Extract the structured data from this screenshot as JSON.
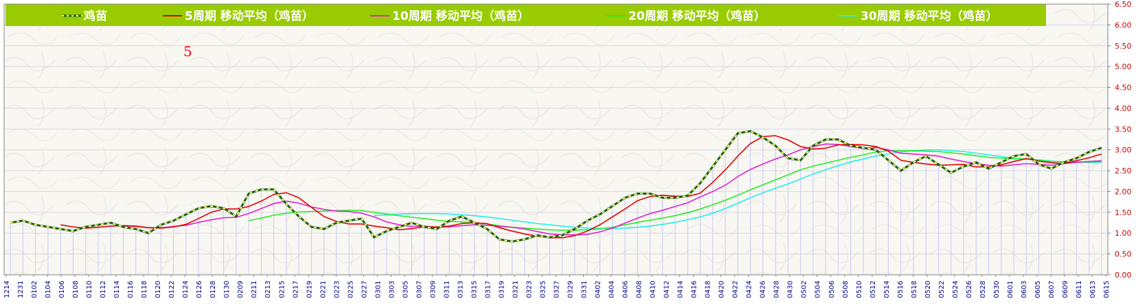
{
  "colors": {
    "legend_bg": "#99cc00",
    "plot_bg": "#f8f7f2",
    "grid_h": "#d8d8e8",
    "bar": "#c8c8f8",
    "x_tick_text": "#000080",
    "y_tick_text": "#cc0000",
    "annotation": "#ff0000"
  },
  "legend": [
    {
      "label": "鸡苗",
      "color": "#2e7d32",
      "style": "dashed-marker"
    },
    {
      "label": "5周期 移动平均（鸡苗）",
      "color": "#e00000"
    },
    {
      "label": "10周期 移动平均（鸡苗）",
      "color": "#e020d0"
    },
    {
      "label": "20周期 移动平均（鸡苗）",
      "color": "#22ee22"
    },
    {
      "label": "30周期 移动平均（鸡苗）",
      "color": "#22eeee"
    }
  ],
  "annotation_text": "5",
  "chart_data": {
    "type": "line",
    "ylim": [
      0,
      6.5
    ],
    "y_ticks": [
      "0.00",
      "0.50",
      "1.00",
      "1.50",
      "2.00",
      "2.50",
      "3.00",
      "3.50",
      "4.00",
      "4.50",
      "5.00",
      "5.50",
      "6.00",
      "6.50"
    ],
    "x_tick_labels": [
      "1214",
      "1231",
      "0102",
      "0104",
      "0106",
      "0108",
      "0110",
      "0112",
      "0114",
      "0116",
      "0118",
      "0120",
      "0122",
      "0124",
      "0126",
      "0128",
      "0130",
      "0209",
      "0211",
      "0213",
      "0215",
      "0217",
      "0219",
      "0221",
      "0223",
      "0225",
      "0227",
      "0301",
      "0303",
      "0305",
      "0307",
      "0309",
      "0311",
      "0313",
      "0315",
      "0317",
      "0319",
      "0321",
      "0323",
      "0325",
      "0327",
      "0329",
      "0331",
      "0402",
      "0404",
      "0406",
      "0408",
      "0410",
      "0412",
      "0414",
      "0416",
      "0418",
      "0420",
      "0422",
      "0424",
      "0426",
      "0428",
      "0430",
      "0502",
      "0504",
      "0506",
      "0508",
      "0510",
      "0512",
      "0514",
      "0516",
      "0518",
      "0520",
      "0522",
      "0524",
      "0526",
      "0528",
      "0530",
      "0601",
      "0603",
      "0605",
      "0607",
      "0609",
      "0611",
      "0613",
      "0615"
    ],
    "series": [
      {
        "name": "鸡苗",
        "values": [
          1.25,
          1.3,
          1.2,
          1.15,
          1.1,
          1.05,
          1.15,
          1.2,
          1.25,
          1.15,
          1.1,
          1.0,
          1.2,
          1.3,
          1.45,
          1.6,
          1.65,
          1.6,
          1.4,
          1.95,
          2.05,
          2.05,
          1.7,
          1.4,
          1.15,
          1.1,
          1.25,
          1.3,
          1.35,
          0.9,
          1.05,
          1.15,
          1.25,
          1.15,
          1.1,
          1.3,
          1.4,
          1.25,
          1.1,
          0.85,
          0.8,
          0.85,
          0.95,
          0.9,
          0.95,
          1.1,
          1.3,
          1.45,
          1.65,
          1.85,
          1.95,
          1.95,
          1.85,
          1.85,
          1.9,
          2.2,
          2.6,
          3.0,
          3.4,
          3.45,
          3.3,
          3.1,
          2.8,
          2.75,
          3.1,
          3.25,
          3.25,
          3.1,
          3.05,
          3.0,
          2.75,
          2.5,
          2.7,
          2.85,
          2.65,
          2.45,
          2.6,
          2.7,
          2.55,
          2.7,
          2.85,
          2.9,
          2.65,
          2.55,
          2.7,
          2.8,
          2.95,
          3.05
        ]
      },
      {
        "name": "5周期 移动平均（鸡苗）",
        "values": [
          null,
          null,
          null,
          null,
          1.2,
          1.15,
          1.12,
          1.14,
          1.17,
          1.18,
          1.17,
          1.13,
          1.12,
          1.15,
          1.21,
          1.35,
          1.5,
          1.58,
          1.58,
          1.64,
          1.77,
          1.93,
          1.97,
          1.85,
          1.62,
          1.4,
          1.28,
          1.22,
          1.22,
          1.17,
          1.13,
          1.08,
          1.11,
          1.15,
          1.15,
          1.17,
          1.23,
          1.25,
          1.23,
          1.13,
          1.05,
          0.98,
          0.93,
          0.89,
          0.89,
          0.94,
          1.05,
          1.2,
          1.39,
          1.58,
          1.78,
          1.88,
          1.91,
          1.89,
          1.88,
          1.96,
          2.22,
          2.52,
          2.85,
          3.15,
          3.32,
          3.34,
          3.24,
          3.08,
          3.02,
          3.04,
          3.12,
          3.13,
          3.12,
          3.08,
          2.97,
          2.75,
          2.7,
          2.66,
          2.63,
          2.64,
          2.65,
          2.59,
          2.59,
          2.64,
          2.72,
          2.79,
          2.73,
          2.69,
          2.67,
          2.74,
          2.81,
          2.9
        ]
      },
      {
        "name": "10周期 移动平均（鸡苗）",
        "values": [
          null,
          null,
          null,
          null,
          null,
          null,
          null,
          null,
          null,
          1.18,
          1.16,
          1.13,
          1.13,
          1.16,
          1.19,
          1.26,
          1.32,
          1.37,
          1.38,
          1.47,
          1.59,
          1.71,
          1.77,
          1.72,
          1.63,
          1.57,
          1.53,
          1.52,
          1.48,
          1.39,
          1.27,
          1.2,
          1.16,
          1.17,
          1.14,
          1.15,
          1.18,
          1.2,
          1.19,
          1.16,
          1.14,
          1.1,
          1.04,
          0.98,
          0.96,
          0.96,
          0.97,
          1.03,
          1.12,
          1.24,
          1.36,
          1.47,
          1.55,
          1.64,
          1.73,
          1.87,
          2.0,
          2.15,
          2.36,
          2.53,
          2.66,
          2.78,
          2.88,
          3.0,
          3.08,
          3.14,
          3.13,
          3.08,
          3.03,
          3.06,
          3.0,
          2.92,
          2.9,
          2.88,
          2.85,
          2.78,
          2.72,
          2.67,
          2.63,
          2.61,
          2.64,
          2.67,
          2.65,
          2.63,
          2.67,
          2.7,
          2.72,
          2.74
        ]
      },
      {
        "name": "20周期 移动平均（鸡苗）",
        "values": [
          null,
          null,
          null,
          null,
          null,
          null,
          null,
          null,
          null,
          null,
          null,
          null,
          null,
          null,
          null,
          null,
          null,
          null,
          null,
          1.3,
          1.36,
          1.43,
          1.48,
          1.51,
          1.52,
          1.53,
          1.54,
          1.55,
          1.54,
          1.5,
          1.46,
          1.42,
          1.38,
          1.35,
          1.31,
          1.28,
          1.27,
          1.25,
          1.22,
          1.18,
          1.14,
          1.12,
          1.1,
          1.08,
          1.07,
          1.07,
          1.08,
          1.1,
          1.14,
          1.2,
          1.26,
          1.31,
          1.36,
          1.42,
          1.49,
          1.58,
          1.68,
          1.79,
          1.91,
          2.04,
          2.16,
          2.28,
          2.4,
          2.52,
          2.61,
          2.68,
          2.75,
          2.82,
          2.88,
          2.95,
          2.98,
          2.98,
          2.98,
          2.97,
          2.96,
          2.93,
          2.9,
          2.86,
          2.82,
          2.8,
          2.79,
          2.78,
          2.75,
          2.72,
          2.71,
          2.71,
          2.71,
          2.72
        ]
      },
      {
        "name": "30周期 移动平均（鸡苗）",
        "values": [
          null,
          null,
          null,
          null,
          null,
          null,
          null,
          null,
          null,
          null,
          null,
          null,
          null,
          null,
          null,
          null,
          null,
          null,
          null,
          null,
          null,
          null,
          null,
          null,
          null,
          null,
          null,
          null,
          null,
          1.42,
          1.44,
          1.46,
          1.47,
          1.47,
          1.47,
          1.46,
          1.44,
          1.42,
          1.39,
          1.35,
          1.31,
          1.27,
          1.23,
          1.2,
          1.17,
          1.14,
          1.12,
          1.11,
          1.11,
          1.12,
          1.14,
          1.17,
          1.21,
          1.26,
          1.32,
          1.39,
          1.48,
          1.59,
          1.72,
          1.85,
          1.97,
          2.08,
          2.18,
          2.3,
          2.42,
          2.52,
          2.62,
          2.71,
          2.78,
          2.85,
          2.9,
          2.95,
          2.98,
          3.0,
          3.0,
          2.98,
          2.96,
          2.92,
          2.88,
          2.84,
          2.8,
          2.78,
          2.76,
          2.73,
          2.71,
          2.7,
          2.7,
          2.7
        ]
      }
    ]
  }
}
